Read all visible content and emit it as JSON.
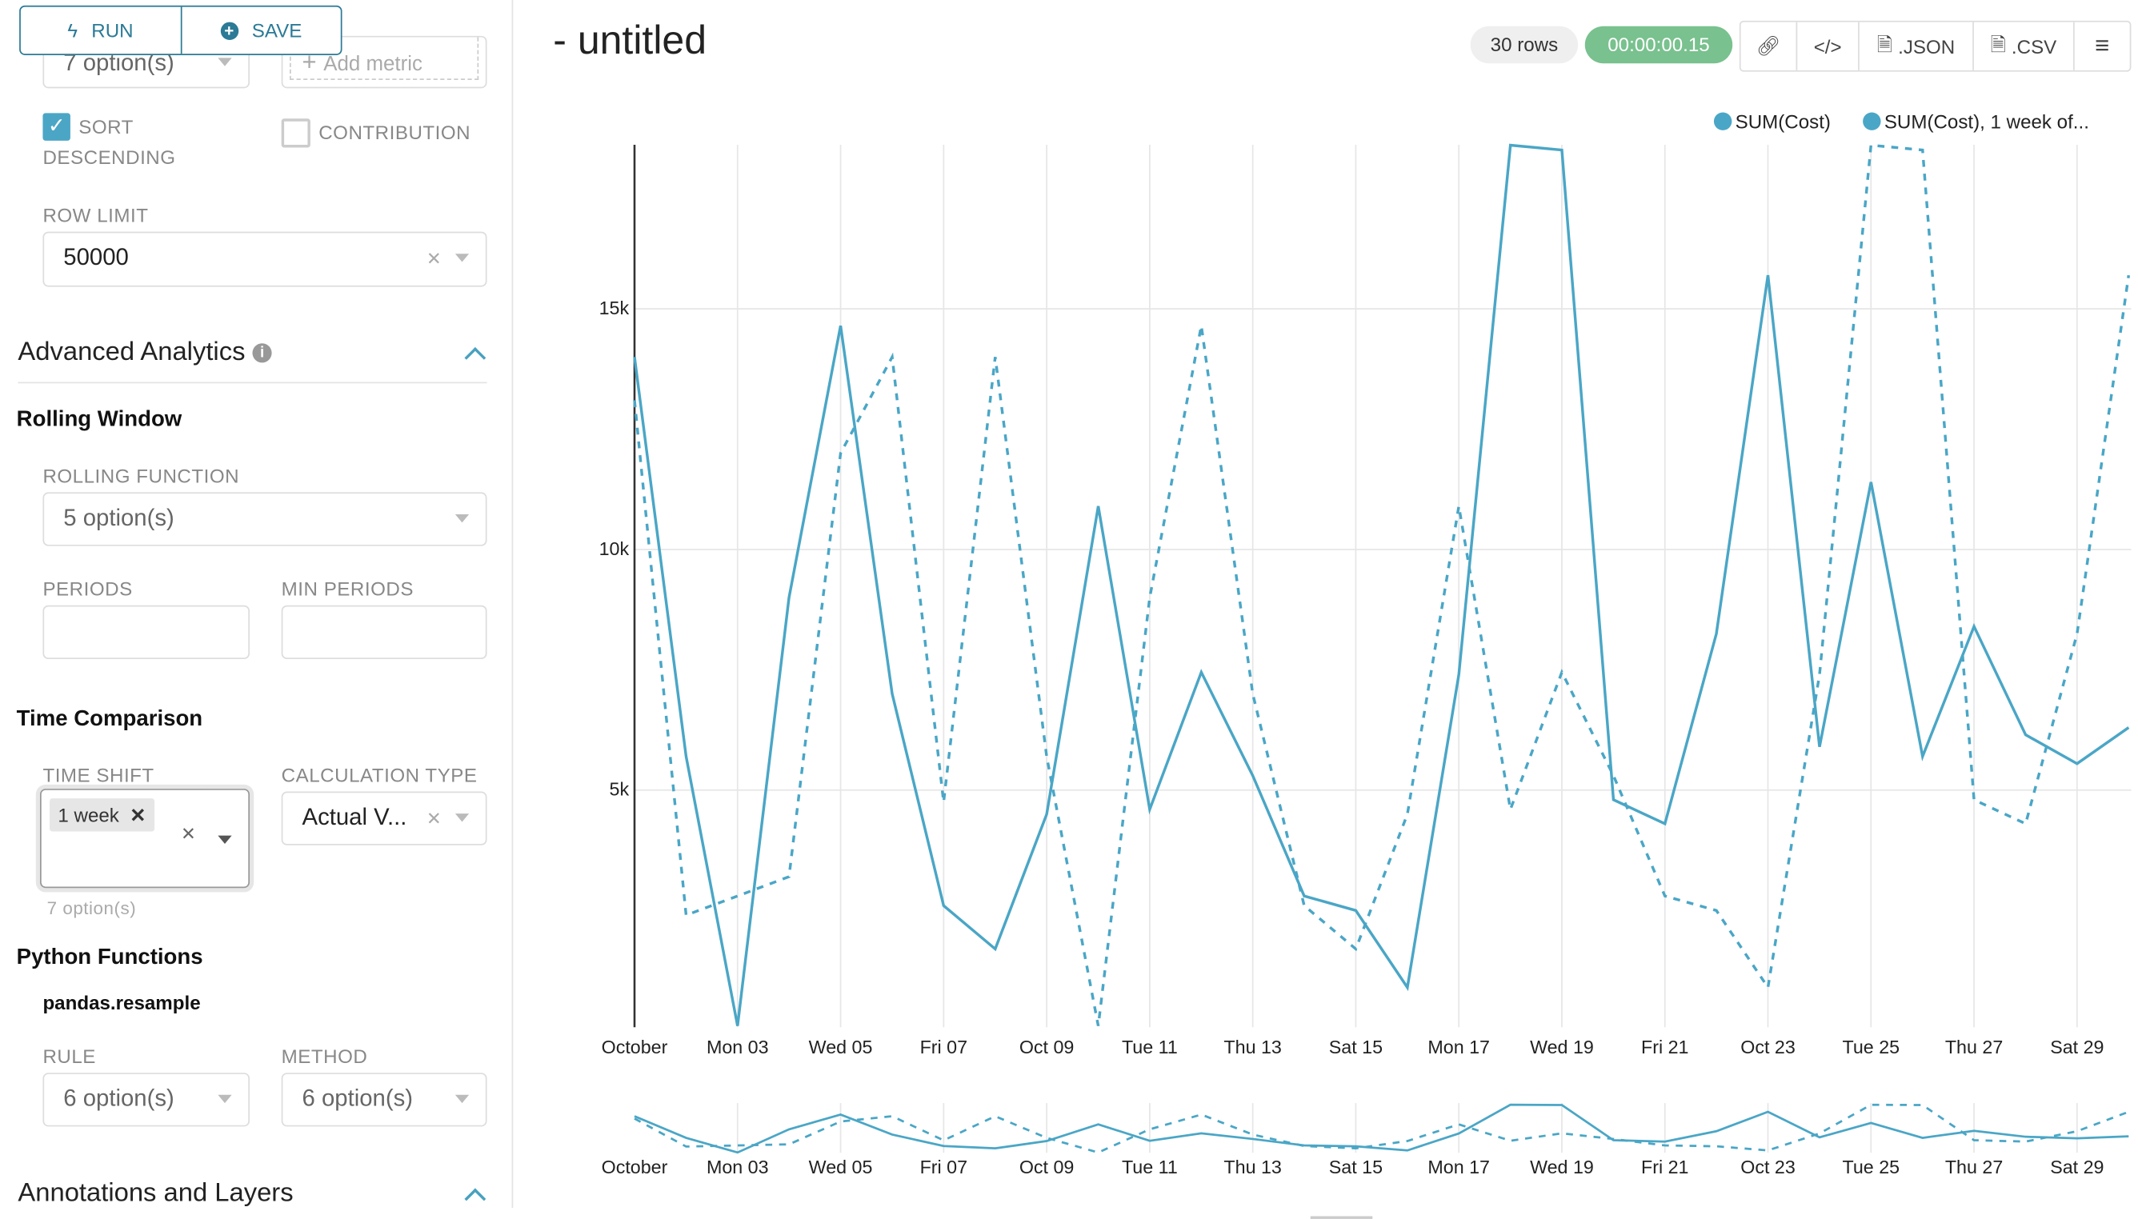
{
  "sidebar": {
    "run_label": "RUN",
    "save_label": "SAVE",
    "sort_select": "7 option(s)",
    "add_metric": "Add metric",
    "sort_desc_line1": "SORT",
    "sort_desc_line2": "DESCENDING",
    "sort_desc_checked": true,
    "contribution": "CONTRIBUTION",
    "contribution_checked": false,
    "row_limit_label": "ROW LIMIT",
    "row_limit_value": "50000",
    "advanced_analytics": "Advanced Analytics",
    "rolling_window": "Rolling Window",
    "rolling_function_label": "ROLLING FUNCTION",
    "rolling_function_value": "5 option(s)",
    "periods_label": "PERIODS",
    "min_periods_label": "MIN PERIODS",
    "time_comparison": "Time Comparison",
    "time_shift_label": "TIME SHIFT",
    "time_shift_tag": "1 week",
    "time_shift_hint": "7 option(s)",
    "calc_type_label": "CALCULATION TYPE",
    "calc_type_value": "Actual V...",
    "python_functions": "Python Functions",
    "pandas_resample": "pandas.resample",
    "rule_label": "RULE",
    "rule_value": "6 option(s)",
    "method_label": "METHOD",
    "method_value": "6 option(s)",
    "annotations": "Annotations and Layers"
  },
  "header": {
    "title": "- untitled",
    "rows": "30 rows",
    "timer": "00:00:00.15",
    "json": ".JSON",
    "csv": ".CSV"
  },
  "colors": {
    "accent": "#2b7a96",
    "series": "#4aa6c6",
    "timer_bg": "#79c18e"
  },
  "chart_data": {
    "type": "line",
    "x": [
      "2016-10-01",
      "2016-10-02",
      "2016-10-03",
      "2016-10-04",
      "2016-10-05",
      "2016-10-06",
      "2016-10-07",
      "2016-10-08",
      "2016-10-09",
      "2016-10-10",
      "2016-10-11",
      "2016-10-12",
      "2016-10-13",
      "2016-10-14",
      "2016-10-15",
      "2016-10-16",
      "2016-10-17",
      "2016-10-18",
      "2016-10-19",
      "2016-10-20",
      "2016-10-21",
      "2016-10-22",
      "2016-10-23",
      "2016-10-24",
      "2016-10-25",
      "2016-10-26",
      "2016-10-27",
      "2016-10-28",
      "2016-10-29",
      "2016-10-30"
    ],
    "x_tick_labels": [
      "October",
      "Mon 03",
      "Wed 05",
      "Fri 07",
      "Oct 09",
      "Tue 11",
      "Thu 13",
      "Sat 15",
      "Mon 17",
      "Wed 19",
      "Fri 21",
      "Oct 23",
      "Tue 25",
      "Thu 27",
      "Sat 29"
    ],
    "y_tick_labels": [
      "5k",
      "10k",
      "15k"
    ],
    "y_ticks": [
      5000,
      10000,
      15000
    ],
    "ylim": [
      0,
      18500
    ],
    "grid": true,
    "legend_position": "top-right",
    "series": [
      {
        "name": "SUM(Cost)",
        "style": "solid",
        "values": [
          14000,
          5700,
          100,
          9000,
          14650,
          7000,
          2600,
          1700,
          4500,
          10900,
          4600,
          7450,
          5300,
          2800,
          2500,
          900,
          7400,
          18400,
          18300,
          4800,
          4300,
          8250,
          15700,
          5900,
          11400,
          5700,
          8400,
          6150,
          5550,
          6300
        ]
      },
      {
        "name": "SUM(Cost), 1 week of...",
        "style": "dashed",
        "values": [
          13100,
          2400,
          2800,
          3200,
          12000,
          14000,
          4750,
          14000,
          5700,
          100,
          9000,
          14650,
          7000,
          2600,
          1700,
          4500,
          10900,
          4600,
          7450,
          5300,
          2800,
          2500,
          900,
          7400,
          18400,
          18300,
          4800,
          4300,
          8250,
          15700
        ]
      }
    ]
  }
}
